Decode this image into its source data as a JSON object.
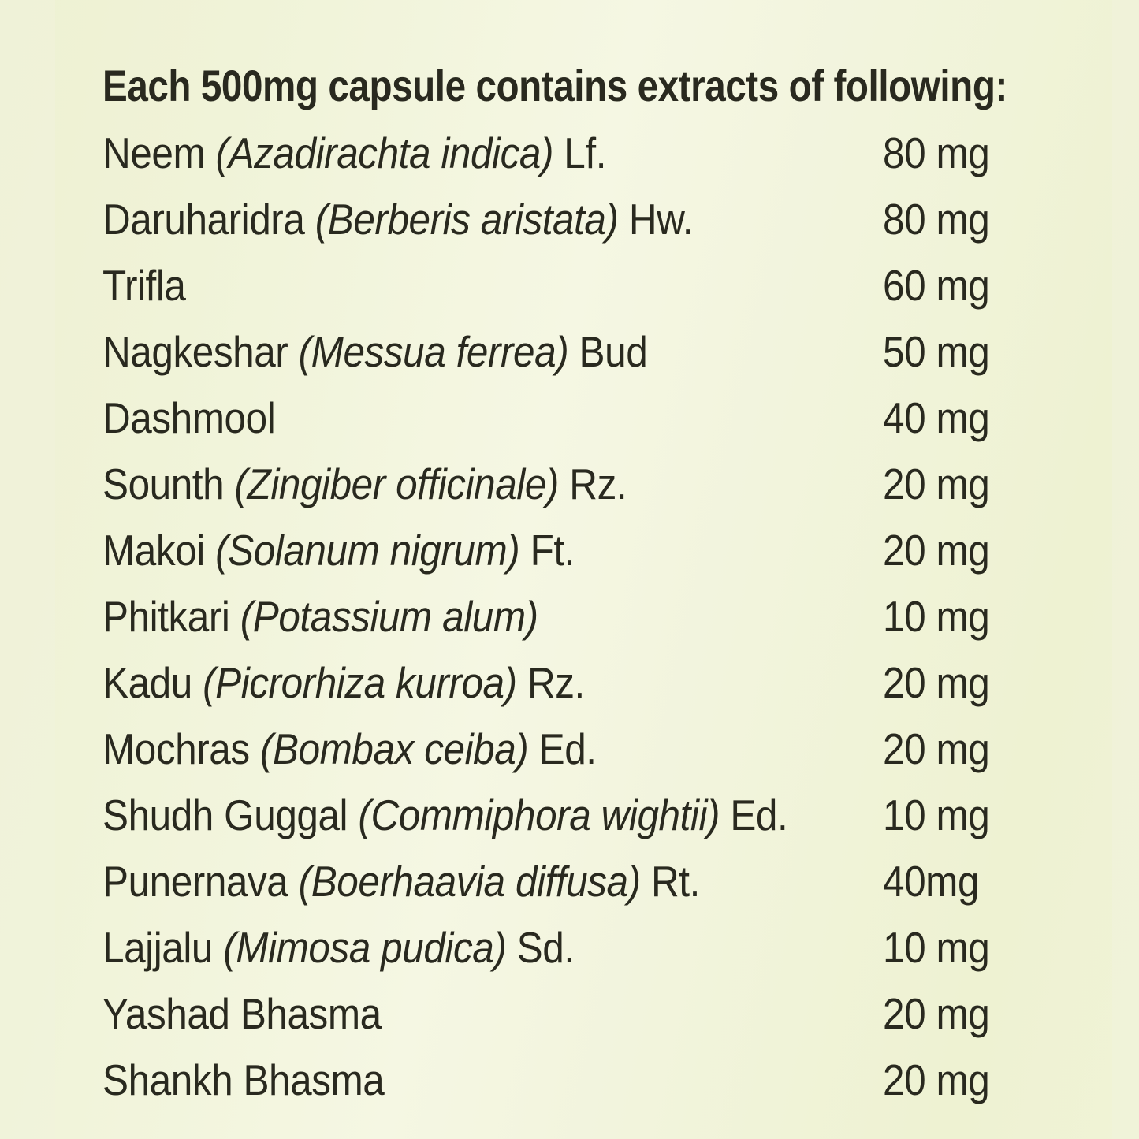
{
  "colors": {
    "background": "#f2f4dc",
    "text": "#29291f"
  },
  "header": {
    "title": "Each 500mg capsule contains extracts of following:"
  },
  "ingredients": [
    {
      "name": "Neem",
      "latin": "(Azadirachta indica)",
      "part": "Lf.",
      "amount": "80 mg"
    },
    {
      "name": "Daruharidra",
      "latin": "(Berberis aristata)",
      "part": "Hw.",
      "amount": "80 mg"
    },
    {
      "name": "Trifla",
      "latin": "",
      "part": "",
      "amount": "60 mg"
    },
    {
      "name": "Nagkeshar",
      "latin": "(Messua ferrea)",
      "part": "Bud",
      "amount": "50 mg"
    },
    {
      "name": "Dashmool",
      "latin": "",
      "part": "",
      "amount": "40 mg"
    },
    {
      "name": "Sounth",
      "latin": "(Zingiber officinale)",
      "part": "Rz.",
      "amount": "20 mg"
    },
    {
      "name": "Makoi",
      "latin": "(Solanum nigrum)",
      "part": "Ft.",
      "amount": "20 mg"
    },
    {
      "name": "Phitkari",
      "latin": "(Potassium alum)",
      "part": "",
      "amount": "10 mg"
    },
    {
      "name": "Kadu",
      "latin": "(Picrorhiza kurroa)",
      "part": "Rz.",
      "amount": "20 mg"
    },
    {
      "name": "Mochras",
      "latin": "(Bombax ceiba)",
      "part": "Ed.",
      "amount": "20 mg"
    },
    {
      "name": "Shudh Guggal",
      "latin": "(Commiphora wightii)",
      "part": "Ed.",
      "amount": "10 mg"
    },
    {
      "name": "Punernava",
      "latin": "(Boerhaavia diffusa)",
      "part": "Rt.",
      "amount": "40mg"
    },
    {
      "name": "Lajjalu",
      "latin": "(Mimosa pudica)",
      "part": "Sd.",
      "amount": "10 mg"
    },
    {
      "name": "Yashad Bhasma",
      "latin": "",
      "part": "",
      "amount": "20 mg"
    },
    {
      "name": "Shankh Bhasma",
      "latin": "",
      "part": "",
      "amount": "20 mg"
    }
  ]
}
